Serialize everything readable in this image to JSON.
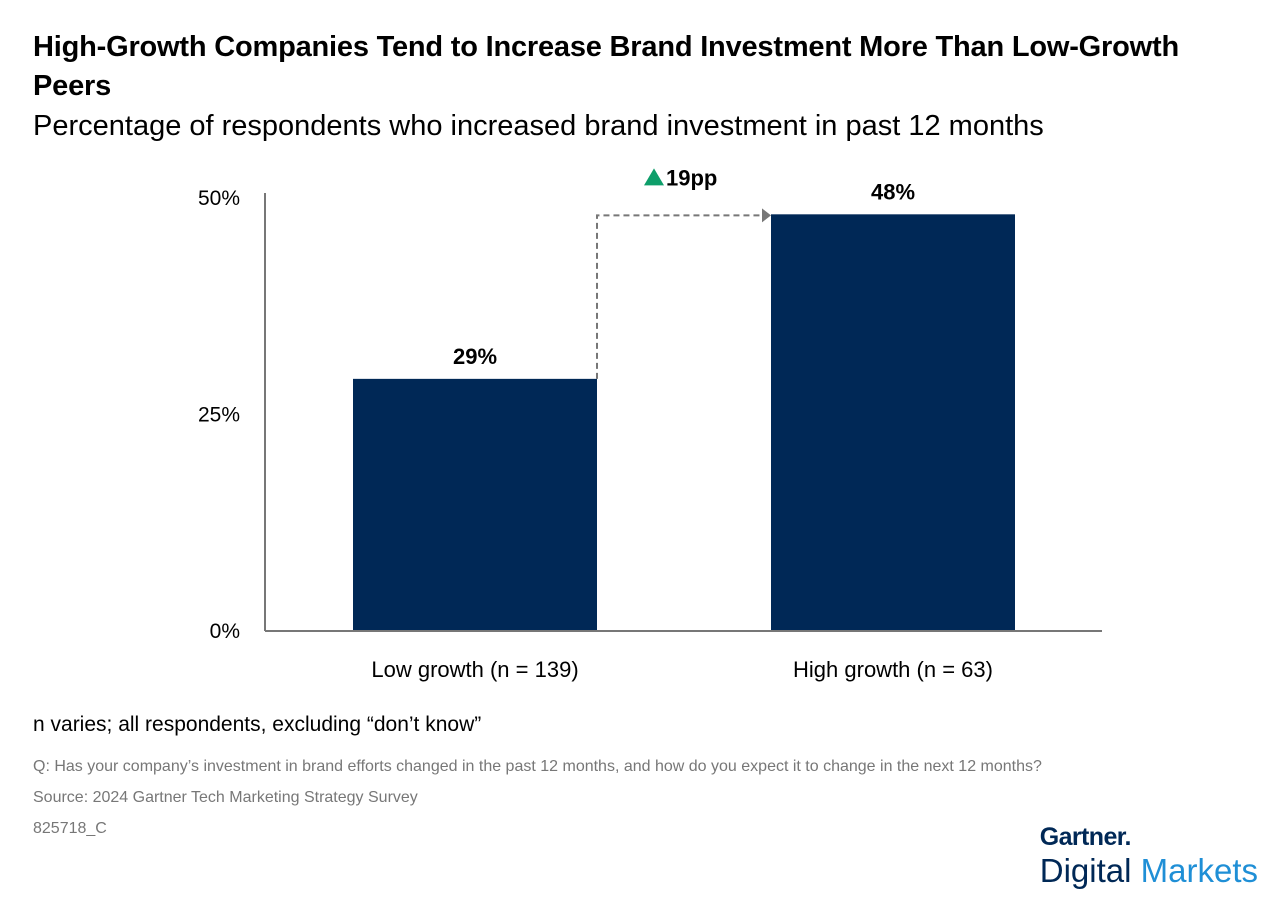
{
  "chart_data": {
    "type": "bar",
    "title": "High-Growth Companies Tend to Increase Brand Investment More Than Low-Growth Peers",
    "subtitle": "Percentage of respondents who increased brand investment in past 12 months",
    "categories": [
      "Low growth (n = 139)",
      "High growth (n = 63)"
    ],
    "values": [
      29,
      48
    ],
    "data_labels": [
      "29%",
      "48%"
    ],
    "ylim": [
      0,
      50
    ],
    "yticks": [
      0,
      25,
      50
    ],
    "ytick_labels": [
      "0%",
      "25%",
      "50%"
    ],
    "xlabel": "",
    "ylabel": "",
    "bar_color": "#002856",
    "grid": false,
    "legend": "none",
    "annotation": {
      "text": "19pp",
      "from_value": 29,
      "to_value": 48,
      "arrow_color": "#777777",
      "triangle_color": "#0d9e6a"
    }
  },
  "footer": {
    "note": "n varies; all respondents, excluding “don’t know”",
    "question": "Q: Has your company’s investment in brand efforts changed in the past 12 months, and how do you expect it to change in the next 12 months?",
    "source": "Source: 2024 Gartner Tech Marketing Strategy Survey",
    "id": "825718_C"
  },
  "logo": {
    "top": "Gartner.",
    "bottom_1": "Digital",
    "bottom_2": "Markets"
  }
}
